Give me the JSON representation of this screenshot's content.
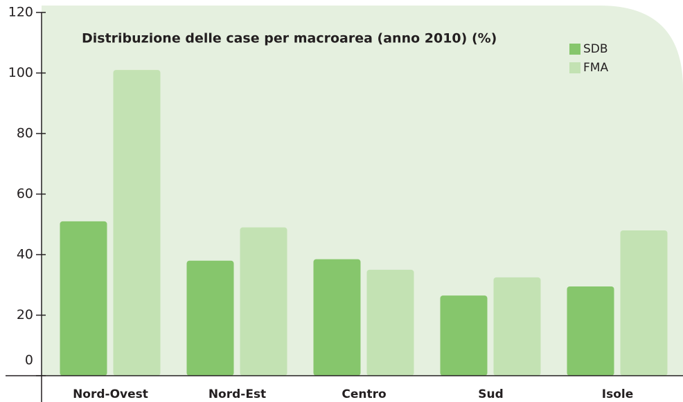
{
  "chart_data": {
    "type": "bar",
    "title": "Distribuzione delle case per macroarea (anno 2010) (%)",
    "categories": [
      "Nord-Ovest",
      "Nord-Est",
      "Centro",
      "Sud",
      "Isole"
    ],
    "series": [
      {
        "name": "SDB",
        "color": "#86c66c",
        "values": [
          51,
          38,
          38.5,
          26.5,
          29.5
        ]
      },
      {
        "name": "FMA",
        "color": "#c3e2b3",
        "values": [
          101,
          49,
          35,
          32.5,
          48
        ]
      }
    ],
    "ylim": [
      0,
      120
    ],
    "yticks": [
      0,
      20,
      40,
      60,
      80,
      100,
      120
    ],
    "legend": "top-right"
  }
}
